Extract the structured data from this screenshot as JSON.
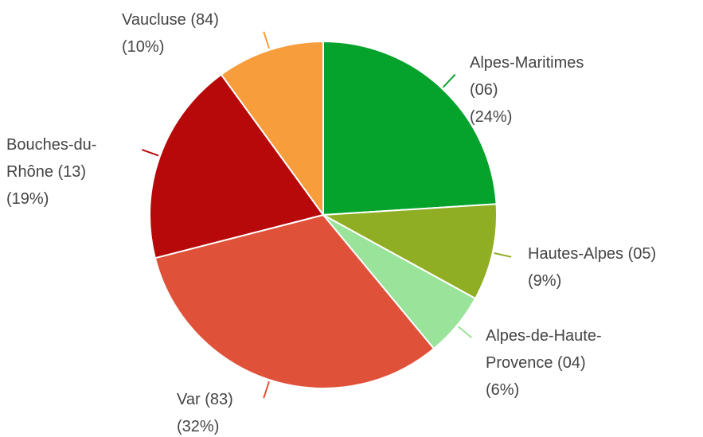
{
  "chart_data": {
    "type": "pie",
    "categories": [
      "Alpes-Maritimes (06)",
      "Hautes-Alpes (05)",
      "Alpes-de-Haute-Provence (04)",
      "Var (83)",
      "Bouches-du-Rhône (13)",
      "Vaucluse (84)"
    ],
    "values": [
      24,
      9,
      6,
      32,
      19,
      10
    ],
    "value_labels": [
      "(24%)",
      "(9%)",
      "(6%)",
      "(32%)",
      "(19%)",
      "(10%)"
    ],
    "colors": [
      "#05a32b",
      "#8fae24",
      "#99e39a",
      "#e0513a",
      "#b70909",
      "#f89d3b"
    ]
  }
}
